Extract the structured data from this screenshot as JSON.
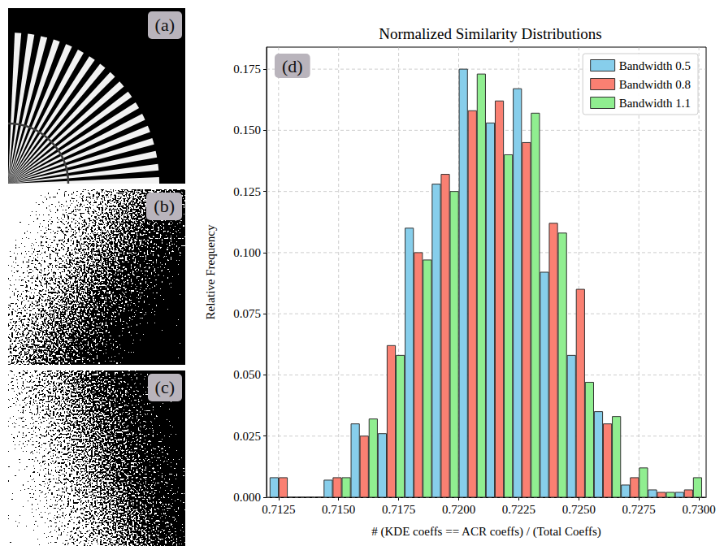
{
  "panels": [
    {
      "label": "(a)"
    },
    {
      "label": "(b)"
    },
    {
      "label": "(c)"
    }
  ],
  "chart_data": {
    "type": "histogram",
    "panel_label": "(d)",
    "title": "Normalized Similarity Distributions",
    "x_label": "# (KDE coeffs == ACR coeffs) / (Total Coeffs)",
    "y_label": "Relative Frequency",
    "bins": [
      0.71213,
      0.713255,
      0.71438,
      0.715505,
      0.71663,
      0.717755,
      0.71888,
      0.720005,
      0.72113,
      0.722255,
      0.72338,
      0.724505,
      0.72563,
      0.726755,
      0.72788,
      0.729005,
      0.73013
    ],
    "series": [
      {
        "name": "Bandwidth 0.5",
        "color": "#87ceeb",
        "values": [
          0.008,
          0,
          0.007,
          0.03,
          0.026,
          0.11,
          0.128,
          0.175,
          0.153,
          0.167,
          0.092,
          0.058,
          0.035,
          0.005,
          0.003,
          0.002
        ]
      },
      {
        "name": "Bandwidth 0.8",
        "color": "#fa8072",
        "values": [
          0.008,
          0,
          0.008,
          0.025,
          0.062,
          0.1,
          0.132,
          0.158,
          0.162,
          0.145,
          0.112,
          0.085,
          0.03,
          0.008,
          0.002,
          0.003
        ]
      },
      {
        "name": "Bandwidth 1.1",
        "color": "#90ee90",
        "values": [
          0,
          0,
          0.008,
          0.032,
          0.058,
          0.097,
          0.125,
          0.173,
          0.14,
          0.157,
          0.108,
          0.047,
          0.033,
          0.012,
          0.002,
          0.008
        ]
      }
    ],
    "xlim": [
      0.712,
      0.7303
    ],
    "xticks": [
      0.7125,
      {
        "value": 0.715,
        "label": "0.7150"
      },
      0.7175,
      {
        "value": 0.72,
        "label": "0.7200"
      },
      0.7225,
      {
        "value": 0.725,
        "label": "0.7250"
      },
      0.7275,
      {
        "value": 0.73,
        "label": "0.7300"
      }
    ],
    "ylim": [
      0,
      0.184
    ],
    "yticks": [
      {
        "value": 0,
        "label": "0.000"
      },
      0.025,
      {
        "value": 0.05,
        "label": "0.050"
      },
      0.075,
      {
        "value": 0.1,
        "label": "0.100"
      },
      0.125,
      {
        "value": 0.15,
        "label": "0.150"
      },
      0.175
    ],
    "grid": true,
    "legend": "upper right"
  }
}
